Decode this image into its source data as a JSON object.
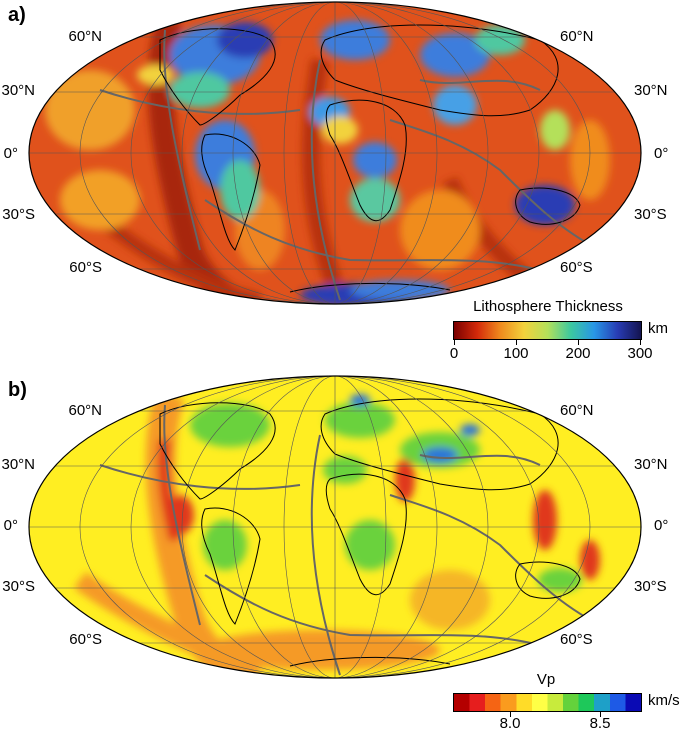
{
  "panel_a": {
    "label": "a)",
    "lat_labels_left": [
      "60°N",
      "30°N",
      "0°",
      "30°S",
      "60°S"
    ],
    "lat_labels_right": [
      "60°N",
      "30°N",
      "0°",
      "30°S",
      "60°S"
    ],
    "colorbar": {
      "title": "Lithosphere Thickness",
      "unit": "km",
      "ticks": [
        "0",
        "100",
        "200",
        "300"
      ],
      "colors": [
        "#7a0000",
        "#d42a0a",
        "#f08c1e",
        "#f2d23c",
        "#b4e05a",
        "#3cc8a0",
        "#2896e6",
        "#283cb4",
        "#141450"
      ]
    }
  },
  "panel_b": {
    "label": "b)",
    "lat_labels_left": [
      "60°N",
      "30°N",
      "0°",
      "30°S",
      "60°S"
    ],
    "lat_labels_right": [
      "60°N",
      "30°N",
      "0°",
      "30°S",
      "60°S"
    ],
    "colorbar": {
      "title": "Vp",
      "unit": "km/s",
      "ticks": [
        "8.0",
        "8.5"
      ],
      "colors": [
        "#b40000",
        "#e61e1e",
        "#f56414",
        "#fa9b1e",
        "#ffdc28",
        "#ffff46",
        "#c8eb3c",
        "#64d23c",
        "#1ec85a",
        "#1ea0c8",
        "#1e5ae6",
        "#0a0ab4"
      ]
    }
  },
  "map_colors": {
    "a_ocean": "#e0521c",
    "a_ridge": "#b8300c",
    "a_craton": "#3c7ddc",
    "a_mid": "#f2c43c",
    "b_base": "#ffee22",
    "b_orange": "#f59a28",
    "b_red": "#e0381a",
    "b_green": "#6ad23e",
    "b_blue": "#2a74d8",
    "graticule": "#555555",
    "coast": "#000000",
    "plate": "#666666"
  }
}
